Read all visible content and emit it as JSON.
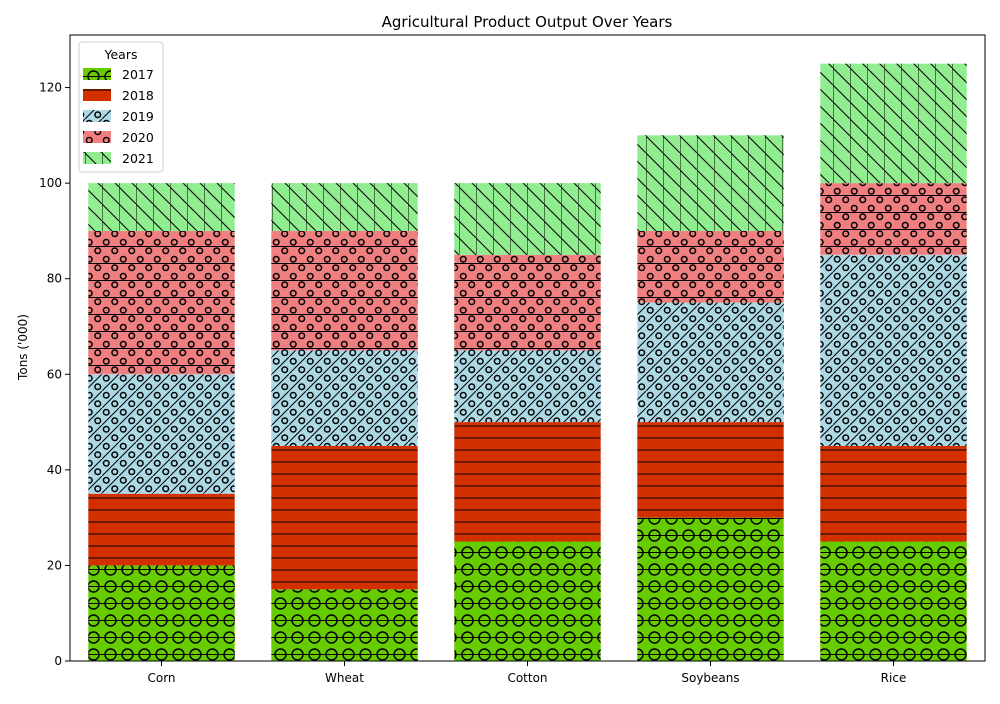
{
  "chart_data": {
    "type": "bar",
    "stacked": true,
    "title": "Agricultural Product Output Over Years",
    "xlabel": "",
    "ylabel": "Tons ('000)",
    "categories": [
      "Corn",
      "Wheat",
      "Cotton",
      "Soybeans",
      "Rice"
    ],
    "ylim": [
      0,
      131
    ],
    "yticks": [
      0,
      20,
      40,
      60,
      80,
      100,
      120
    ],
    "grid": false,
    "legend": {
      "title": "Years",
      "position": "top-left"
    },
    "series": [
      {
        "name": "2017",
        "values": [
          20,
          15,
          25,
          30,
          25
        ],
        "color": "#66cc00",
        "hatch": "big-circles"
      },
      {
        "name": "2018",
        "values": [
          15,
          30,
          25,
          20,
          20
        ],
        "color": "#d33000",
        "hatch": "horizontal-lines"
      },
      {
        "name": "2019",
        "values": [
          25,
          20,
          15,
          25,
          40
        ],
        "color": "#add8e6",
        "hatch": "diagonal-circles"
      },
      {
        "name": "2020",
        "values": [
          30,
          25,
          20,
          15,
          15
        ],
        "color": "#f08080",
        "hatch": "horizontal-circles"
      },
      {
        "name": "2021",
        "values": [
          10,
          10,
          15,
          20,
          25
        ],
        "color": "#90ee90",
        "hatch": "backslash-lines"
      }
    ]
  }
}
